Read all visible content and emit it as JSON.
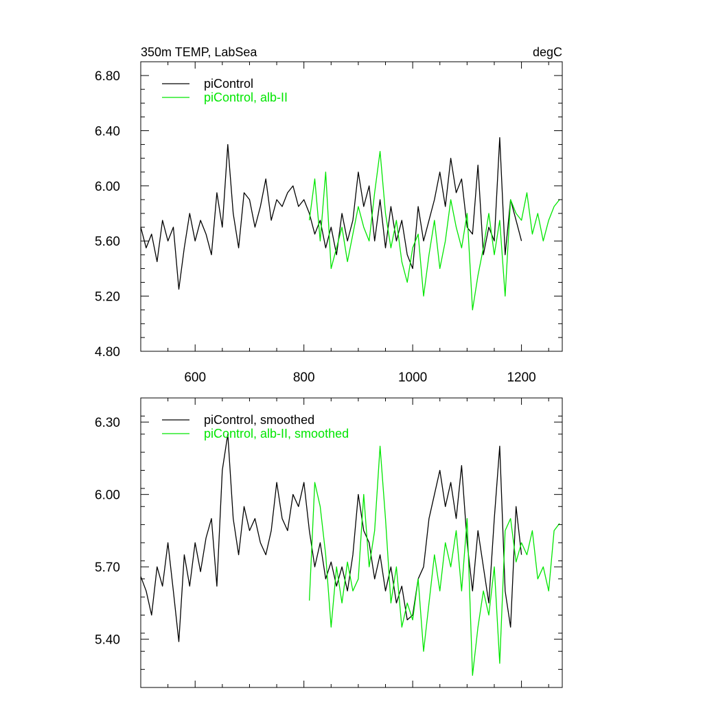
{
  "colors": {
    "background": "#ffffff",
    "axis": "#000000",
    "picontrol": "#000000",
    "alb_ii": "#00e600"
  },
  "chart_data": [
    {
      "type": "line",
      "title": "350m TEMP, LabSea",
      "units": "degC",
      "xlabel": "",
      "ylabel": "",
      "xlim": [
        500,
        1275
      ],
      "ylim": [
        4.8,
        6.9
      ],
      "xticks": [
        600,
        800,
        1000,
        1200
      ],
      "xtick_labels": [
        "600",
        "800",
        "1000",
        "1200"
      ],
      "yticks": [
        4.8,
        5.2,
        5.6,
        6.0,
        6.4,
        6.8
      ],
      "ytick_labels": [
        "4.80",
        "5.20",
        "5.60",
        "6.00",
        "6.40",
        "6.80"
      ],
      "grid": false,
      "legend": "top-left",
      "series": [
        {
          "name": "piControl",
          "color": "#000000",
          "x": [
            500,
            510,
            520,
            530,
            540,
            550,
            560,
            570,
            580,
            590,
            600,
            610,
            620,
            630,
            640,
            650,
            660,
            670,
            680,
            690,
            700,
            710,
            720,
            730,
            740,
            750,
            760,
            770,
            780,
            790,
            800,
            810,
            820,
            830,
            840,
            850,
            860,
            870,
            880,
            890,
            900,
            910,
            920,
            930,
            940,
            950,
            960,
            970,
            980,
            990,
            1000,
            1010,
            1020,
            1030,
            1040,
            1050,
            1060,
            1070,
            1080,
            1090,
            1100,
            1110,
            1120,
            1130,
            1140,
            1150,
            1160,
            1170,
            1180,
            1190,
            1200
          ],
          "y": [
            5.7,
            5.55,
            5.65,
            5.45,
            5.75,
            5.6,
            5.7,
            5.25,
            5.55,
            5.8,
            5.6,
            5.75,
            5.65,
            5.5,
            5.95,
            5.7,
            6.3,
            5.8,
            5.55,
            5.95,
            5.9,
            5.7,
            5.85,
            6.05,
            5.75,
            5.9,
            5.85,
            5.95,
            6.0,
            5.85,
            5.9,
            5.8,
            5.65,
            5.75,
            5.55,
            5.7,
            5.5,
            5.8,
            5.6,
            5.75,
            6.1,
            5.85,
            6.0,
            5.6,
            5.9,
            5.55,
            5.85,
            5.6,
            5.75,
            5.5,
            5.4,
            5.85,
            5.6,
            5.75,
            5.9,
            6.1,
            5.85,
            6.2,
            5.95,
            6.05,
            5.7,
            5.65,
            6.15,
            5.5,
            5.7,
            5.6,
            6.35,
            5.5,
            5.9,
            5.75,
            5.6
          ]
        },
        {
          "name": "piControl, alb-II",
          "color": "#00e600",
          "x": [
            810,
            820,
            830,
            840,
            850,
            860,
            870,
            880,
            890,
            900,
            910,
            920,
            930,
            940,
            950,
            960,
            970,
            980,
            990,
            1000,
            1010,
            1020,
            1030,
            1040,
            1050,
            1060,
            1070,
            1080,
            1090,
            1100,
            1110,
            1120,
            1130,
            1140,
            1150,
            1160,
            1170,
            1180,
            1190,
            1200,
            1210,
            1220,
            1230,
            1240,
            1250,
            1260,
            1270
          ],
          "y": [
            5.75,
            6.05,
            5.6,
            6.1,
            5.4,
            5.55,
            5.7,
            5.45,
            5.65,
            5.85,
            5.7,
            5.6,
            5.95,
            6.25,
            5.8,
            5.55,
            5.75,
            5.45,
            5.3,
            5.55,
            5.65,
            5.2,
            5.5,
            5.75,
            5.4,
            5.6,
            5.9,
            5.7,
            5.55,
            5.8,
            5.1,
            5.35,
            5.55,
            5.8,
            5.5,
            5.75,
            5.2,
            5.9,
            5.8,
            5.75,
            5.95,
            5.65,
            5.8,
            5.6,
            5.75,
            5.85,
            5.9
          ]
        }
      ]
    },
    {
      "type": "line",
      "title": "",
      "xlabel": "",
      "ylabel": "",
      "xlim": [
        500,
        1275
      ],
      "ylim": [
        5.2,
        6.4
      ],
      "xticks": [
        600,
        800,
        1000,
        1200
      ],
      "yticks": [
        5.4,
        5.7,
        6.0,
        6.3
      ],
      "ytick_labels": [
        "5.40",
        "5.70",
        "6.00",
        "6.30"
      ],
      "grid": false,
      "legend": "top-left",
      "series": [
        {
          "name": "piControl, smoothed",
          "color": "#000000",
          "x": [
            500,
            510,
            520,
            530,
            540,
            550,
            560,
            570,
            580,
            590,
            600,
            610,
            620,
            630,
            640,
            650,
            660,
            670,
            680,
            690,
            700,
            710,
            720,
            730,
            740,
            750,
            760,
            770,
            780,
            790,
            800,
            810,
            820,
            830,
            840,
            850,
            860,
            870,
            880,
            890,
            900,
            910,
            920,
            930,
            940,
            950,
            960,
            970,
            980,
            990,
            1000,
            1010,
            1020,
            1030,
            1040,
            1050,
            1060,
            1070,
            1080,
            1090,
            1100,
            1110,
            1120,
            1130,
            1140,
            1150,
            1160,
            1170,
            1180,
            1190,
            1200
          ],
          "y": [
            5.66,
            5.6,
            5.5,
            5.7,
            5.62,
            5.8,
            5.6,
            5.39,
            5.75,
            5.62,
            5.8,
            5.68,
            5.82,
            5.9,
            5.62,
            6.1,
            6.25,
            5.9,
            5.75,
            5.95,
            5.85,
            5.9,
            5.8,
            5.75,
            5.85,
            6.05,
            5.9,
            5.85,
            6.0,
            5.95,
            6.05,
            5.85,
            5.7,
            5.8,
            5.65,
            5.72,
            5.62,
            5.7,
            5.6,
            5.75,
            6.0,
            5.85,
            5.8,
            5.65,
            5.75,
            5.6,
            5.7,
            5.55,
            5.62,
            5.48,
            5.5,
            5.65,
            5.7,
            5.9,
            6.0,
            6.1,
            5.95,
            6.05,
            5.9,
            6.12,
            5.8,
            5.6,
            5.85,
            5.7,
            5.55,
            5.9,
            6.2,
            5.6,
            5.45,
            5.95,
            5.75
          ]
        },
        {
          "name": "piControl, alb-II, smoothed",
          "color": "#00e600",
          "x": [
            810,
            820,
            830,
            840,
            850,
            860,
            870,
            880,
            890,
            900,
            910,
            920,
            930,
            940,
            950,
            960,
            970,
            980,
            990,
            1000,
            1010,
            1020,
            1030,
            1040,
            1050,
            1060,
            1070,
            1080,
            1090,
            1100,
            1110,
            1120,
            1130,
            1140,
            1150,
            1160,
            1170,
            1180,
            1190,
            1200,
            1210,
            1220,
            1230,
            1240,
            1250,
            1260,
            1270
          ],
          "y": [
            5.56,
            6.05,
            5.95,
            5.75,
            5.45,
            5.7,
            5.55,
            5.72,
            5.6,
            5.65,
            6.0,
            5.7,
            5.85,
            6.2,
            5.9,
            5.55,
            5.7,
            5.45,
            5.55,
            5.48,
            5.65,
            5.35,
            5.55,
            5.75,
            5.6,
            5.8,
            5.7,
            5.85,
            5.6,
            5.9,
            5.25,
            5.45,
            5.6,
            5.5,
            5.7,
            5.3,
            5.85,
            5.9,
            5.72,
            5.8,
            5.75,
            5.85,
            5.65,
            5.7,
            5.6,
            5.85,
            5.88
          ]
        }
      ]
    }
  ]
}
